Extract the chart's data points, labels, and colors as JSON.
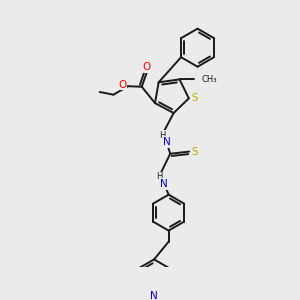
{
  "bg_color": "#ebebeb",
  "bond_color": "#1a1a1a",
  "bond_width": 1.4,
  "atom_colors": {
    "O": "#ff0000",
    "N": "#0000cc",
    "S": "#bbaa00",
    "C": "#1a1a1a",
    "H": "#1a1a1a"
  },
  "font_size": 6.5,
  "fig_size": [
    3.0,
    3.0
  ],
  "dpi": 100,
  "xlim": [
    0,
    10
  ],
  "ylim": [
    0,
    10
  ]
}
